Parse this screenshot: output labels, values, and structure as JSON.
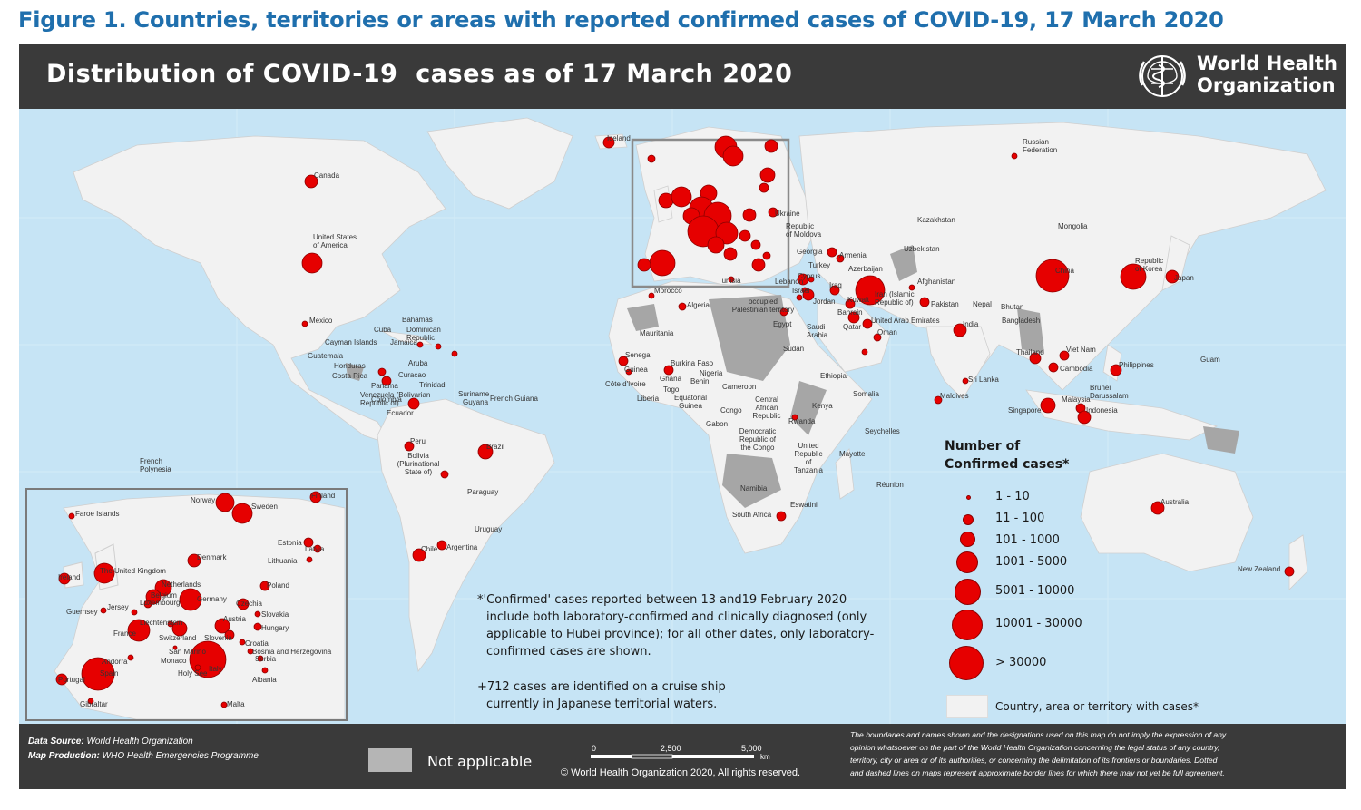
{
  "figure_title": "Figure 1. Countries, territories or areas with reported confirmed cases of COVID-19, 17 March 2020",
  "header": {
    "map_title": "Distribution of COVID-19  cases as of 17 March 2020",
    "org_name_line1": "World Health",
    "org_name_line2": "Organization"
  },
  "colors": {
    "ocean": "#c6e4f5",
    "land": "#f2f2f2",
    "not_applicable": "#a6a6a6",
    "case_bubble": "#e60000",
    "header_bg": "#3a3a3a",
    "title_blue": "#1f6fad"
  },
  "legend": {
    "title": "Number of\nConfirmed cases*",
    "classes": [
      "1 - 10",
      "11 - 100",
      "101 - 1000",
      "1001 - 5000",
      "5001 - 10000",
      "10001 - 30000",
      "> 30000"
    ],
    "country_with_cases": "Country, area or territory with cases*"
  },
  "notes": {
    "confirmed_note_lines": [
      "*'Confirmed' cases reported between 13 and19 February 2020",
      "include both laboratory-confirmed and clinically diagnosed (only",
      "applicable to Hubei province); for all other dates, only laboratory-",
      "confirmed cases are shown."
    ],
    "cruise_note_lines": [
      "+712 cases are identified on a cruise ship",
      "currently in Japanese territorial waters."
    ]
  },
  "footer": {
    "data_source_label": "Data Source:",
    "data_source_value": "World Health Organization",
    "map_production_label": "Map Production:",
    "map_production_value": "WHO Health Emergencies Programme",
    "not_applicable": "Not applicable",
    "scale_ticks": [
      "0",
      "2,500",
      "5,000"
    ],
    "scale_unit": "km",
    "copyright": "© World Health Organization  2020,  All rights reserved.",
    "disclaimer_lines": [
      "The boundaries and names shown and the designations used on this map do not imply the expression of any",
      "opinion whatsoever on the part of the World Health Organization concerning the legal status of any country,",
      "territory, city or area or of its authorities, or concerning the delimitation of its frontiers or boundaries. Dotted",
      "and dashed lines on maps represent approximate border lines for which there may not yet be full agreement."
    ]
  },
  "map_labels": {
    "world": [
      "Iceland",
      "Canada",
      "United States of America",
      "Mexico",
      "Cuba",
      "Bahamas",
      "Cayman Islands",
      "Jamaica",
      "Dominican Republic",
      "Guatemala",
      "Honduras",
      "Costa Rica",
      "Panama",
      "Venezuela (Bolivarian Republic of)",
      "Colombia",
      "Ecuador",
      "Peru",
      "Bolivia (Plurinational State of)",
      "Brazil",
      "Paraguay",
      "Uruguay",
      "Chile",
      "Argentina",
      "French Polynesia",
      "Guyana",
      "Suriname",
      "French Guiana",
      "Curacao",
      "Aruba",
      "Trinidad",
      "Morocco",
      "Algeria",
      "Tunisia",
      "Mauritania",
      "Senegal",
      "Guinea",
      "Côte d'Ivoire",
      "Liberia",
      "Burkina Faso",
      "Ghana",
      "Togo",
      "Benin",
      "Nigeria",
      "Cameroon",
      "Equatorial Guinea",
      "Gabon",
      "Congo",
      "Central African Republic",
      "Democratic Republic of the Congo",
      "Rwanda",
      "Kenya",
      "Ethiopia",
      "Somalia",
      "Sudan",
      "Egypt",
      "United Republic of Tanzania",
      "Seychelles",
      "Mayotte",
      "Réunion",
      "Namibia",
      "South Africa",
      "Eswatini",
      "Russian Federation",
      "Kazakhstan",
      "Mongolia",
      "China",
      "Republic of Korea",
      "Japan",
      "Ukraine",
      "Republic of Moldova",
      "Georgia",
      "Armenia",
      "Azerbaijan",
      "Turkey",
      "Cyprus",
      "Lebanon",
      "Israel",
      "occupied Palestinian territory",
      "Jordan",
      "Iraq",
      "Iran (Islamic Republic of)",
      "Kuwait",
      "Bahrain",
      "Qatar",
      "Saudi Arabia",
      "United Arab Emirates",
      "Oman",
      "Uzbekistan",
      "Afghanistan",
      "Pakistan",
      "Nepal",
      "Bhutan",
      "Bangladesh",
      "India",
      "Sri Lanka",
      "Maldives",
      "Thailand",
      "Viet Nam",
      "Cambodia",
      "Philippines",
      "Malaysia",
      "Singapore",
      "Brunei Darussalam",
      "Indonesia",
      "Guam",
      "Australia",
      "New Zealand"
    ],
    "inset": [
      "Faroe Islands",
      "Norway",
      "Sweden",
      "Finland",
      "Estonia",
      "Latvia",
      "Lithuania",
      "Denmark",
      "The United Kingdom",
      "Ireland",
      "Netherlands",
      "Belgium",
      "Luxembourg",
      "Germany",
      "Poland",
      "Czechia",
      "Slovakia",
      "Austria",
      "Hungary",
      "Jersey",
      "Guernsey",
      "Liechtenstein",
      "France",
      "Switzerland",
      "Slovenia",
      "Croatia",
      "Bosnia and Herzegovina",
      "Serbia",
      "San Marino",
      "Monaco",
      "Andorra",
      "Italy",
      "Holy See",
      "Albania",
      "Spain",
      "Portugal",
      "Gibraltar",
      "Malta"
    ]
  }
}
